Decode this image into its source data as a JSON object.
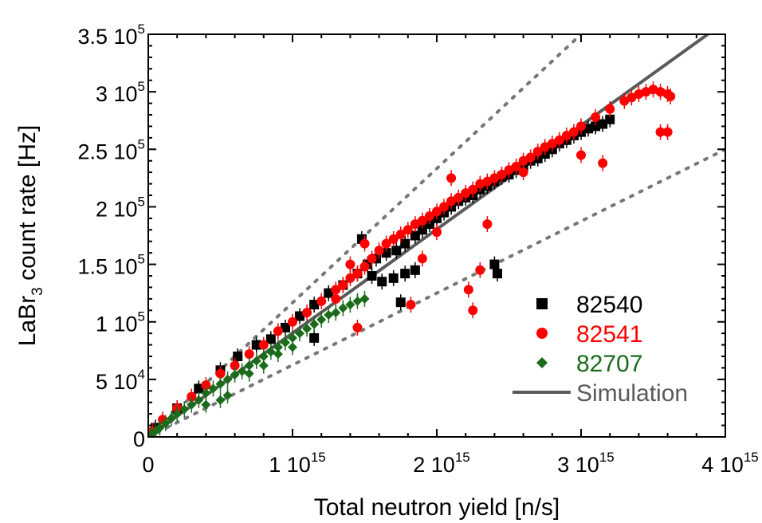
{
  "chart_data": {
    "type": "scatter",
    "title": "",
    "xlabel": "Total neutron yield [n/s]",
    "ylabel": {
      "main": "LaBr",
      "sub": "3",
      "rest": " count rate [Hz]"
    },
    "xlim": [
      0,
      4000000000000000.0
    ],
    "ylim": [
      0,
      350000
    ],
    "x_ticks": [
      {
        "value": 0,
        "mantissa": "0",
        "base": "",
        "exp": ""
      },
      {
        "value": 1000000000000000.0,
        "mantissa": "1",
        "base": " 10",
        "exp": "15"
      },
      {
        "value": 2000000000000000.0,
        "mantissa": "2",
        "base": " 10",
        "exp": "15"
      },
      {
        "value": 3000000000000000.0,
        "mantissa": "3",
        "base": " 10",
        "exp": "15"
      },
      {
        "value": 4000000000000000.0,
        "mantissa": "4",
        "base": " 10",
        "exp": "15"
      }
    ],
    "y_ticks": [
      {
        "value": 0,
        "mantissa": "0",
        "base": "",
        "exp": ""
      },
      {
        "value": 50000,
        "mantissa": "5",
        "base": " 10",
        "exp": "4"
      },
      {
        "value": 100000,
        "mantissa": "1",
        "base": " 10",
        "exp": "5"
      },
      {
        "value": 150000,
        "mantissa": "1.5",
        "base": " 10",
        "exp": "5"
      },
      {
        "value": 200000,
        "mantissa": "2",
        "base": " 10",
        "exp": "5"
      },
      {
        "value": 250000,
        "mantissa": "2.5",
        "base": " 10",
        "exp": "5"
      },
      {
        "value": 300000,
        "mantissa": "3",
        "base": " 10",
        "exp": "5"
      },
      {
        "value": 350000,
        "mantissa": "3.5",
        "base": " 10",
        "exp": "5"
      }
    ],
    "grid": false,
    "legend_position": "bottom-right",
    "series": [
      {
        "name": "82540",
        "marker": "square",
        "color": "#000000",
        "x": [
          50000000000000.0,
          200000000000000.0,
          350000000000000.0,
          500000000000000.0,
          620000000000000.0,
          750000000000000.0,
          850000000000000.0,
          950000000000000.0,
          1050000000000000.0,
          1150000000000000.0,
          1250000000000000.0,
          1350000000000000.0,
          1450000000000000.0,
          1520000000000000.0,
          1580000000000000.0,
          1650000000000000.0,
          1720000000000000.0,
          1780000000000000.0,
          1850000000000000.0,
          1900000000000000.0,
          1950000000000000.0,
          2000000000000000.0,
          2050000000000000.0,
          2100000000000000.0,
          2150000000000000.0,
          2200000000000000.0,
          2250000000000000.0,
          2300000000000000.0,
          2350000000000000.0,
          2400000000000000.0,
          2450000000000000.0,
          2500000000000000.0,
          2550000000000000.0,
          2600000000000000.0,
          2650000000000000.0,
          2700000000000000.0,
          2750000000000000.0,
          2800000000000000.0,
          2850000000000000.0,
          2900000000000000.0,
          2950000000000000.0,
          3000000000000000.0,
          3050000000000000.0,
          3100000000000000.0,
          3150000000000000.0,
          3200000000000000.0,
          1480000000000000.0,
          1550000000000000.0,
          1620000000000000.0,
          1700000000000000.0,
          1780000000000000.0,
          1850000000000000.0,
          2400000000000000.0,
          2420000000000000.0,
          1750000000000000.0,
          1150000000000000.0
        ],
        "y": [
          8000,
          25000,
          42000,
          58000,
          70000,
          80000,
          85000,
          95000,
          105000,
          115000,
          125000,
          132000,
          142000,
          150000,
          155000,
          160000,
          162000,
          168000,
          175000,
          180000,
          185000,
          190000,
          195000,
          200000,
          205000,
          208000,
          210000,
          215000,
          218000,
          222000,
          226000,
          228000,
          232000,
          235000,
          240000,
          242000,
          246000,
          250000,
          255000,
          258000,
          262000,
          265000,
          268000,
          270000,
          272000,
          276000,
          172000,
          140000,
          135000,
          138000,
          142000,
          145000,
          150000,
          142000,
          117000,
          86000
        ]
      },
      {
        "name": "82541",
        "marker": "circle",
        "color": "#ff0000",
        "x": [
          30000000000000.0,
          100000000000000.0,
          200000000000000.0,
          300000000000000.0,
          400000000000000.0,
          500000000000000.0,
          600000000000000.0,
          700000000000000.0,
          800000000000000.0,
          900000000000000.0,
          1000000000000000.0,
          1100000000000000.0,
          1200000000000000.0,
          1300000000000000.0,
          1350000000000000.0,
          1400000000000000.0,
          1450000000000000.0,
          1500000000000000.0,
          1550000000000000.0,
          1600000000000000.0,
          1650000000000000.0,
          1700000000000000.0,
          1750000000000000.0,
          1800000000000000.0,
          1850000000000000.0,
          1900000000000000.0,
          1950000000000000.0,
          2000000000000000.0,
          2050000000000000.0,
          2100000000000000.0,
          2150000000000000.0,
          2200000000000000.0,
          2250000000000000.0,
          2300000000000000.0,
          2350000000000000.0,
          2400000000000000.0,
          2450000000000000.0,
          2500000000000000.0,
          2550000000000000.0,
          2600000000000000.0,
          2650000000000000.0,
          2700000000000000.0,
          2750000000000000.0,
          2800000000000000.0,
          2850000000000000.0,
          2900000000000000.0,
          2950000000000000.0,
          3000000000000000.0,
          3100000000000000.0,
          3200000000000000.0,
          3300000000000000.0,
          3350000000000000.0,
          3400000000000000.0,
          3450000000000000.0,
          3500000000000000.0,
          3550000000000000.0,
          3600000000000000.0,
          3620000000000000.0,
          3550000000000000.0,
          3600000000000000.0,
          2300000000000000.0,
          2220000000000000.0,
          1820000000000000.0,
          1450000000000000.0,
          1400000000000000.0,
          1900000000000000.0,
          2100000000000000.0,
          3000000000000000.0,
          3150000000000000.0,
          2600000000000000.0,
          2000000000000000.0,
          1500000000000000.0,
          1300000000000000.0,
          2250000000000000.0,
          2350000000000000.0
        ],
        "y": [
          5000,
          15000,
          25000,
          35000,
          45000,
          55000,
          62000,
          72000,
          80000,
          92000,
          100000,
          108000,
          118000,
          128000,
          132000,
          138000,
          142000,
          148000,
          155000,
          162000,
          168000,
          172000,
          176000,
          180000,
          185000,
          188000,
          192000,
          196000,
          200000,
          205000,
          208000,
          212000,
          215000,
          220000,
          222000,
          225000,
          228000,
          232000,
          235000,
          240000,
          243000,
          248000,
          252000,
          255000,
          258000,
          262000,
          265000,
          270000,
          278000,
          285000,
          292000,
          295000,
          298000,
          300000,
          302000,
          300000,
          298000,
          296000,
          265000,
          265000,
          145000,
          128000,
          115000,
          95000,
          150000,
          155000,
          225000,
          245000,
          238000,
          230000,
          178000,
          168000,
          120000,
          110000,
          185000
        ]
      },
      {
        "name": "82707",
        "marker": "diamond",
        "color": "#1a6b1a",
        "x": [
          20000000000000.0,
          50000000000000.0,
          80000000000000.0,
          120000000000000.0,
          160000000000000.0,
          200000000000000.0,
          250000000000000.0,
          300000000000000.0,
          350000000000000.0,
          400000000000000.0,
          450000000000000.0,
          500000000000000.0,
          550000000000000.0,
          600000000000000.0,
          650000000000000.0,
          700000000000000.0,
          750000000000000.0,
          800000000000000.0,
          850000000000000.0,
          900000000000000.0,
          950000000000000.0,
          1000000000000000.0,
          1050000000000000.0,
          1100000000000000.0,
          1150000000000000.0,
          1200000000000000.0,
          1250000000000000.0,
          1300000000000000.0,
          1350000000000000.0,
          1400000000000000.0,
          1450000000000000.0,
          1500000000000000.0,
          700000000000000.0,
          800000000000000.0,
          900000000000000.0,
          1000000000000000.0,
          400000000000000.0,
          500000000000000.0,
          550000000000000.0
        ],
        "y": [
          2000,
          5000,
          8000,
          12000,
          16000,
          20000,
          24000,
          28000,
          32000,
          38000,
          42000,
          46000,
          50000,
          54000,
          57000,
          62000,
          66000,
          70000,
          74000,
          78000,
          82000,
          86000,
          90000,
          94000,
          98000,
          102000,
          106000,
          108000,
          112000,
          115000,
          118000,
          120000,
          55000,
          62000,
          72000,
          78000,
          28000,
          32000,
          36000
        ]
      }
    ],
    "lines": [
      {
        "name": "Simulation",
        "style": "solid",
        "color": "#5a5a5a",
        "x": [
          0,
          4000000000000000.0
        ],
        "y": [
          0,
          361000
        ]
      },
      {
        "name": "",
        "style": "dotted",
        "color": "#777777",
        "x": [
          0,
          3000000000000000.0
        ],
        "y": [
          0,
          350000
        ]
      },
      {
        "name": "",
        "style": "dotted",
        "color": "#777777",
        "x": [
          0,
          4000000000000000.0
        ],
        "y": [
          0,
          250000
        ]
      }
    ],
    "legend": [
      {
        "label": "82540",
        "marker": "square",
        "color": "#000000"
      },
      {
        "label": "82541",
        "marker": "circle",
        "color": "#ff0000"
      },
      {
        "label": "82707",
        "marker": "diamond",
        "color": "#1a6b1a"
      },
      {
        "label": "Simulation",
        "marker": "line",
        "color": "#5a5a5a"
      }
    ]
  }
}
